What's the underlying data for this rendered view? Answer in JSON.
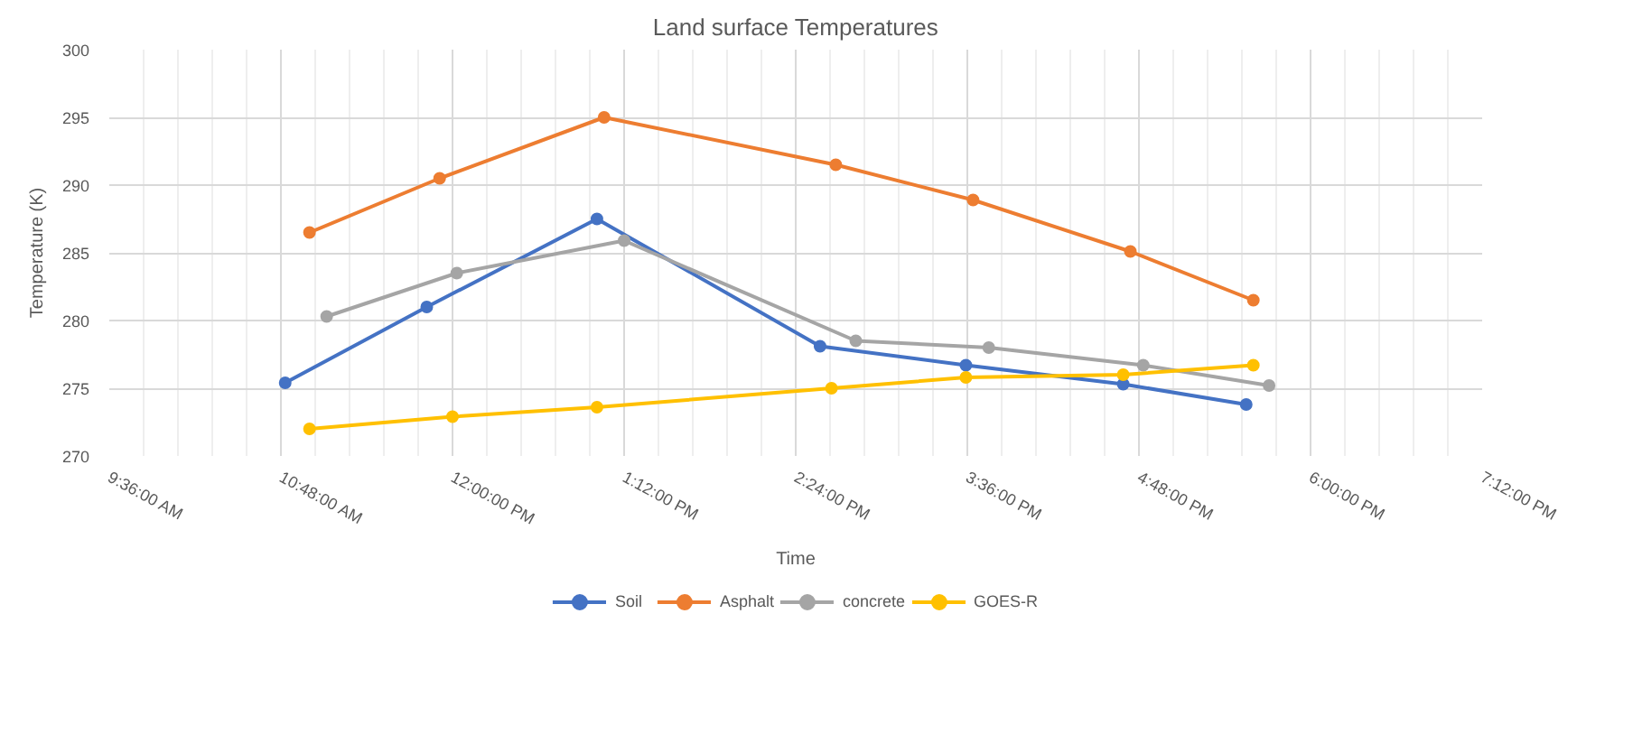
{
  "chart_data": {
    "type": "line",
    "title": "Land surface Temperatures",
    "xlabel": "Time",
    "ylabel": "Temperature (K)",
    "xlim": [
      9.6,
      19.2
    ],
    "xticks": [
      {
        "value": 9.6,
        "label": "9:36:00 AM"
      },
      {
        "value": 10.8,
        "label": "10:48:00 AM"
      },
      {
        "value": 12,
        "label": "12:00:00 PM"
      },
      {
        "value": 13.2,
        "label": "1:12:00 PM"
      },
      {
        "value": 14.4,
        "label": "2:24:00 PM"
      },
      {
        "value": 15.6,
        "label": "3:36:00 PM"
      },
      {
        "value": 16.8,
        "label": "4:48:00 PM"
      },
      {
        "value": 18,
        "label": "6:00:00 PM"
      },
      {
        "value": 19.2,
        "label": "7:12:00 PM"
      }
    ],
    "ylim": [
      270,
      300
    ],
    "yticks": [
      270,
      275,
      280,
      285,
      290,
      295,
      300
    ],
    "grid": true,
    "legend": "bottom",
    "marker": "circle",
    "line_style": "solid",
    "series": [
      {
        "name": "Soil",
        "color": "#4472c4",
        "x": [
          10.83,
          11.82,
          13.01,
          14.57,
          15.59,
          16.69,
          17.55
        ],
        "values": [
          275.4,
          281.0,
          287.5,
          278.1,
          276.7,
          275.3,
          273.8
        ]
      },
      {
        "name": "Asphalt",
        "color": "#ed7d31",
        "x": [
          11.0,
          11.91,
          13.06,
          14.68,
          15.64,
          16.74,
          17.6
        ],
        "values": [
          286.5,
          290.5,
          295.0,
          291.5,
          288.9,
          285.1,
          281.5
        ]
      },
      {
        "name": "concrete",
        "color": "#a5a5a5",
        "x": [
          11.12,
          12.03,
          13.2,
          14.82,
          15.75,
          16.83,
          17.71
        ],
        "values": [
          280.3,
          283.5,
          285.9,
          278.5,
          278.0,
          276.7,
          275.2
        ]
      },
      {
        "name": "GOES-R",
        "color": "#ffc000",
        "x": [
          11.0,
          12.0,
          13.01,
          14.65,
          15.59,
          16.69,
          17.6
        ],
        "values": [
          272.0,
          272.9,
          273.6,
          275.0,
          275.8,
          276.0,
          276.7
        ]
      }
    ]
  }
}
